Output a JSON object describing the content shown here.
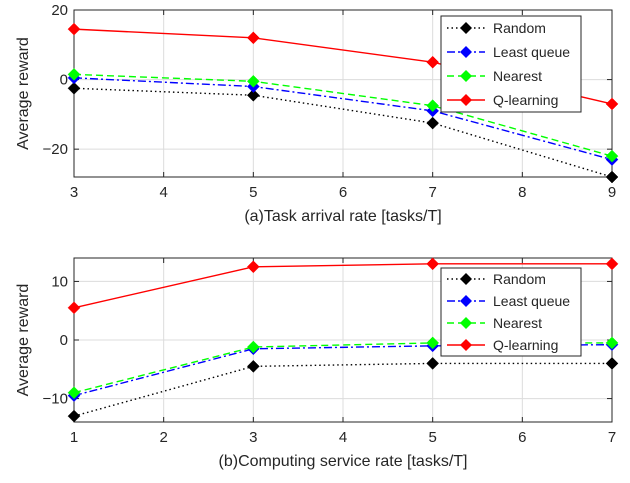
{
  "chart_data": [
    {
      "type": "line",
      "xlabel": "(a)Task arrival rate [tasks/T]",
      "ylabel": "Average reward",
      "xlim": [
        3,
        9
      ],
      "ylim": [
        -28,
        20
      ],
      "xticks": [
        3,
        4,
        5,
        6,
        7,
        8,
        9
      ],
      "yticks": [
        -20,
        0,
        20
      ],
      "grid": true,
      "legend": "top-right",
      "series": [
        {
          "name": "Random",
          "color": "#000000",
          "style": "dotted",
          "x": [
            3,
            5,
            7,
            9
          ],
          "y": [
            -2.5,
            -4.5,
            -12.5,
            -28
          ]
        },
        {
          "name": "Least queue",
          "color": "#0000ff",
          "style": "dashdot",
          "x": [
            3,
            5,
            7,
            9
          ],
          "y": [
            0.5,
            -2,
            -9,
            -23
          ]
        },
        {
          "name": "Nearest",
          "color": "#00ff00",
          "style": "dashed",
          "x": [
            3,
            5,
            7,
            9
          ],
          "y": [
            1.5,
            -0.5,
            -7.5,
            -22
          ]
        },
        {
          "name": "Q-learning",
          "color": "#ff0000",
          "style": "solid",
          "x": [
            3,
            5,
            7,
            9
          ],
          "y": [
            14.5,
            12,
            5,
            -7
          ]
        }
      ]
    },
    {
      "type": "line",
      "xlabel": "(b)Computing service rate [tasks/T]",
      "ylabel": "Average reward",
      "xlim": [
        1,
        7
      ],
      "ylim": [
        -14,
        14
      ],
      "xticks": [
        1,
        2,
        3,
        4,
        5,
        6,
        7
      ],
      "yticks": [
        -10,
        0,
        10
      ],
      "grid": true,
      "legend": "right",
      "series": [
        {
          "name": "Random",
          "color": "#000000",
          "style": "dotted",
          "x": [
            1,
            3,
            5,
            7
          ],
          "y": [
            -13,
            -4.5,
            -4,
            -4
          ]
        },
        {
          "name": "Least queue",
          "color": "#0000ff",
          "style": "dashdot",
          "x": [
            1,
            3,
            5,
            7
          ],
          "y": [
            -9.5,
            -1.5,
            -1,
            -0.8
          ]
        },
        {
          "name": "Nearest",
          "color": "#00ff00",
          "style": "dashed",
          "x": [
            1,
            3,
            5,
            7
          ],
          "y": [
            -9,
            -1.2,
            -0.5,
            -0.5
          ]
        },
        {
          "name": "Q-learning",
          "color": "#ff0000",
          "style": "solid",
          "x": [
            1,
            3,
            5,
            7
          ],
          "y": [
            5.5,
            12.5,
            13,
            13
          ]
        }
      ]
    }
  ]
}
